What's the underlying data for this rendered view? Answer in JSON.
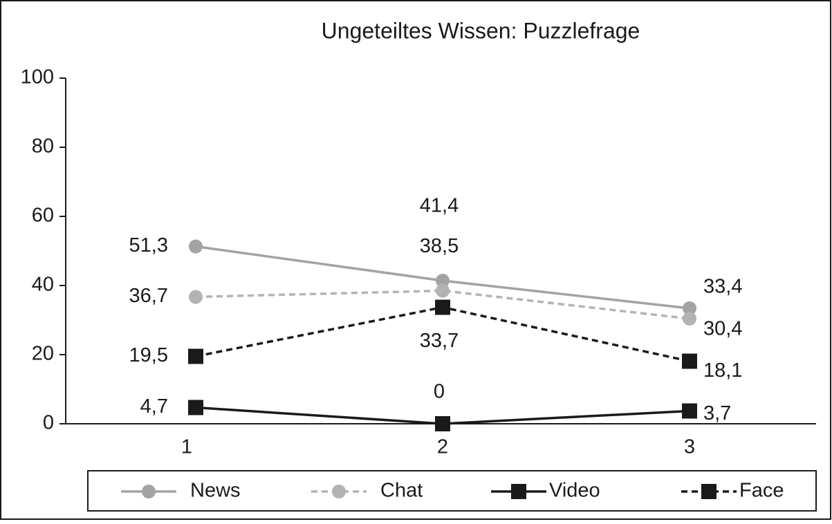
{
  "chart_data": {
    "type": "line",
    "title": "Ungeteiltes Wissen: Puzzlefrage",
    "categories": [
      "1",
      "2",
      "3"
    ],
    "series": [
      {
        "name": "News",
        "color": "#a3a3a3",
        "marker": "circle",
        "dash": false,
        "values": [
          51.3,
          41.4,
          33.4
        ],
        "value_labels": [
          "51,3",
          "41,4",
          "33,4"
        ]
      },
      {
        "name": "Chat",
        "color": "#b3b3b3",
        "marker": "circle",
        "dash": true,
        "values": [
          36.7,
          38.5,
          30.4
        ],
        "value_labels": [
          "36,7",
          "38,5",
          "30,4"
        ]
      },
      {
        "name": "Video",
        "color": "#1a1a1a",
        "marker": "square",
        "dash": false,
        "values": [
          4.7,
          0,
          3.7
        ],
        "value_labels": [
          "4,7",
          "0",
          "3,7"
        ]
      },
      {
        "name": "Face",
        "color": "#1a1a1a",
        "marker": "square",
        "dash": true,
        "values": [
          19.5,
          33.7,
          18.1
        ],
        "value_labels": [
          "19,5",
          "33,7",
          "18,1"
        ]
      }
    ],
    "ylim": [
      0,
      100
    ],
    "yticks": [
      0,
      20,
      40,
      60,
      80,
      100
    ],
    "grid": false,
    "legend": "bottom"
  }
}
